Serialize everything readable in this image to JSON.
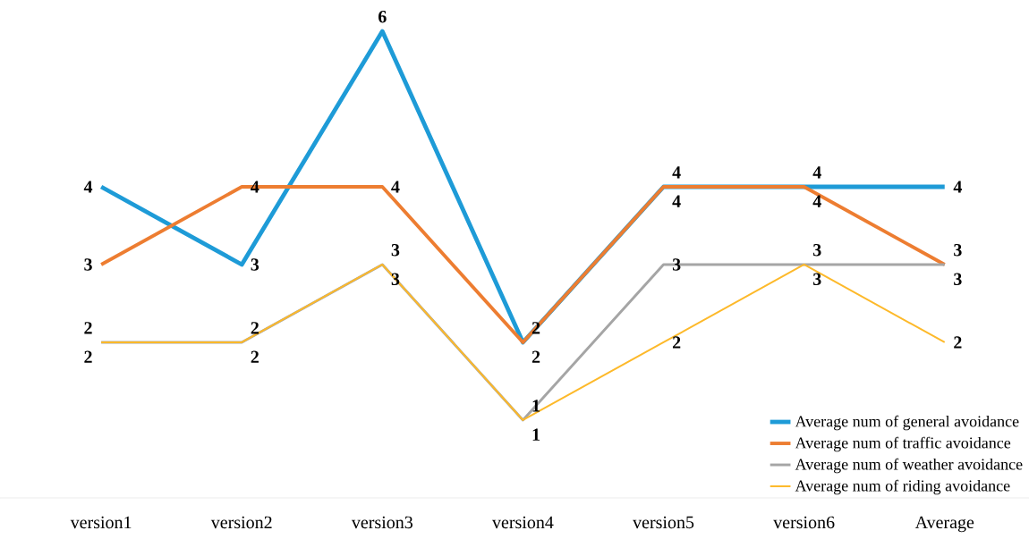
{
  "chart_data": {
    "type": "line",
    "legend": "bottom right",
    "data_labels": true,
    "categories": [
      "version1",
      "version2",
      "version3",
      "version4",
      "version5",
      "version6",
      "Average"
    ],
    "series": [
      {
        "name": "Average num of general avoidance",
        "color": "#1e9bd7",
        "values": [
          4,
          3,
          6,
          2,
          4,
          4,
          4
        ]
      },
      {
        "name": "Average num of traffic avoidance",
        "color": "#ed7d31",
        "values": [
          3,
          4,
          4,
          2,
          4,
          4,
          3
        ]
      },
      {
        "name": "Average num of weather avoidance",
        "color": "#a5a5a5",
        "values": [
          2,
          2,
          3,
          1,
          3,
          3,
          3
        ]
      },
      {
        "name": "Average num of riding avoidance",
        "color": "#fdb92a",
        "values": [
          2,
          2,
          3,
          1,
          2,
          3,
          2
        ]
      }
    ]
  }
}
